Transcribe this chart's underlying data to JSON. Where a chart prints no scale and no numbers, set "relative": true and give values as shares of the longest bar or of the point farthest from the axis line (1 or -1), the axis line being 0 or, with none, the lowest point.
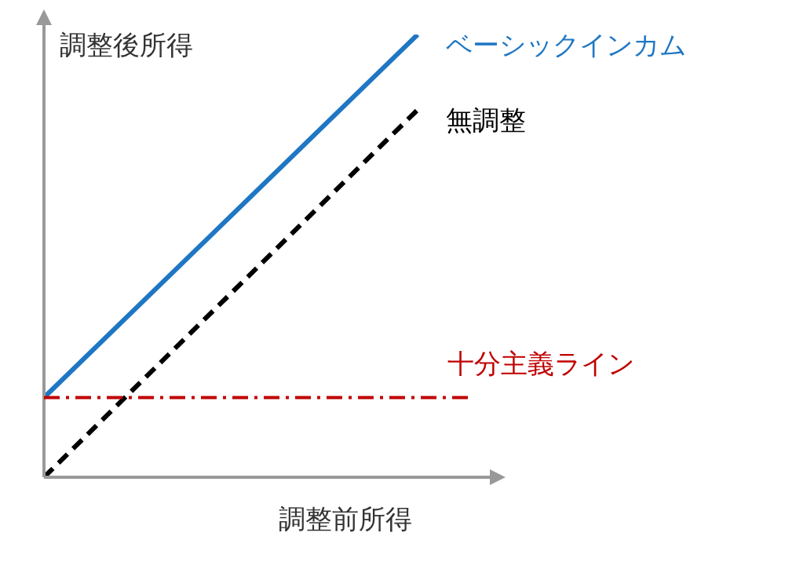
{
  "chart_data": {
    "type": "line",
    "relative": true,
    "xlabel": "調整前所得",
    "ylabel": "調整後所得",
    "categories": [
      null,
      null,
      null,
      null,
      null,
      null,
      null,
      null,
      null
    ],
    "series": [
      {
        "name": "ベーシックインカム",
        "color": "#1f77c4",
        "line_style": "solid",
        "values": [
          0.18,
          null,
          null,
          null,
          null,
          null,
          null,
          1,
          null
        ]
      },
      {
        "name": "無調整",
        "color": "#000000",
        "line_style": "dashed",
        "values": [
          0,
          null,
          null,
          null,
          null,
          null,
          null,
          0.83,
          null
        ]
      }
    ],
    "ref_lines": [
      {
        "axis": "y",
        "value": 0.18,
        "label": "十分主義ライン",
        "color": "#c00000",
        "line_style": "dashdot"
      }
    ],
    "grid": false,
    "legend": false,
    "marker": "none"
  }
}
